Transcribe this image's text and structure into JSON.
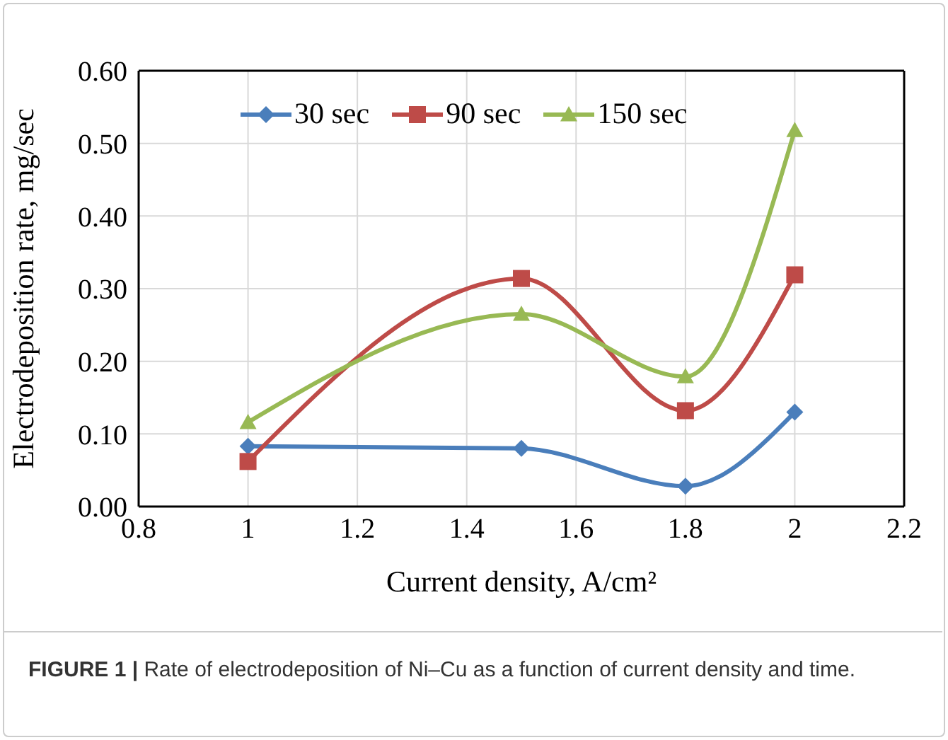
{
  "chart_data": {
    "type": "line",
    "xlabel": "Current density, A/cm²",
    "ylabel": "Electrodeposition rate, mg/sec",
    "annotations": [
      "FIGURE 1 | Rate of electrodeposition of Ni–Cu as a function of current density and time."
    ],
    "x": [
      1,
      1.5,
      1.8,
      2
    ],
    "series": [
      {
        "name": "30 sec",
        "color": "#4a7ebb",
        "marker": "diamond",
        "values": [
          0.083,
          0.08,
          0.028,
          0.13
        ]
      },
      {
        "name": "90 sec",
        "color": "#be4b48",
        "marker": "square",
        "values": [
          0.062,
          0.314,
          0.132,
          0.319
        ]
      },
      {
        "name": "150 sec",
        "color": "#98b954",
        "marker": "triangle",
        "values": [
          0.116,
          0.265,
          0.179,
          0.518
        ]
      }
    ],
    "xlim": [
      0.8,
      2.2
    ],
    "xticks": [
      0.8,
      1,
      1.2,
      1.4,
      1.6,
      1.8,
      2,
      2.2
    ],
    "ylim": [
      0,
      0.6
    ],
    "yticks": [
      {
        "value": 0,
        "label": "0.00"
      },
      {
        "value": 0.1,
        "label": "0.10"
      },
      {
        "value": 0.2,
        "label": "0.20"
      },
      {
        "value": 0.3,
        "label": "0.30"
      },
      {
        "value": 0.4,
        "label": "0.40"
      },
      {
        "value": 0.5,
        "label": "0.50"
      },
      {
        "value": 0.6,
        "label": "0.60"
      }
    ],
    "grid": true,
    "legend": "top left",
    "line_style": "solid"
  }
}
